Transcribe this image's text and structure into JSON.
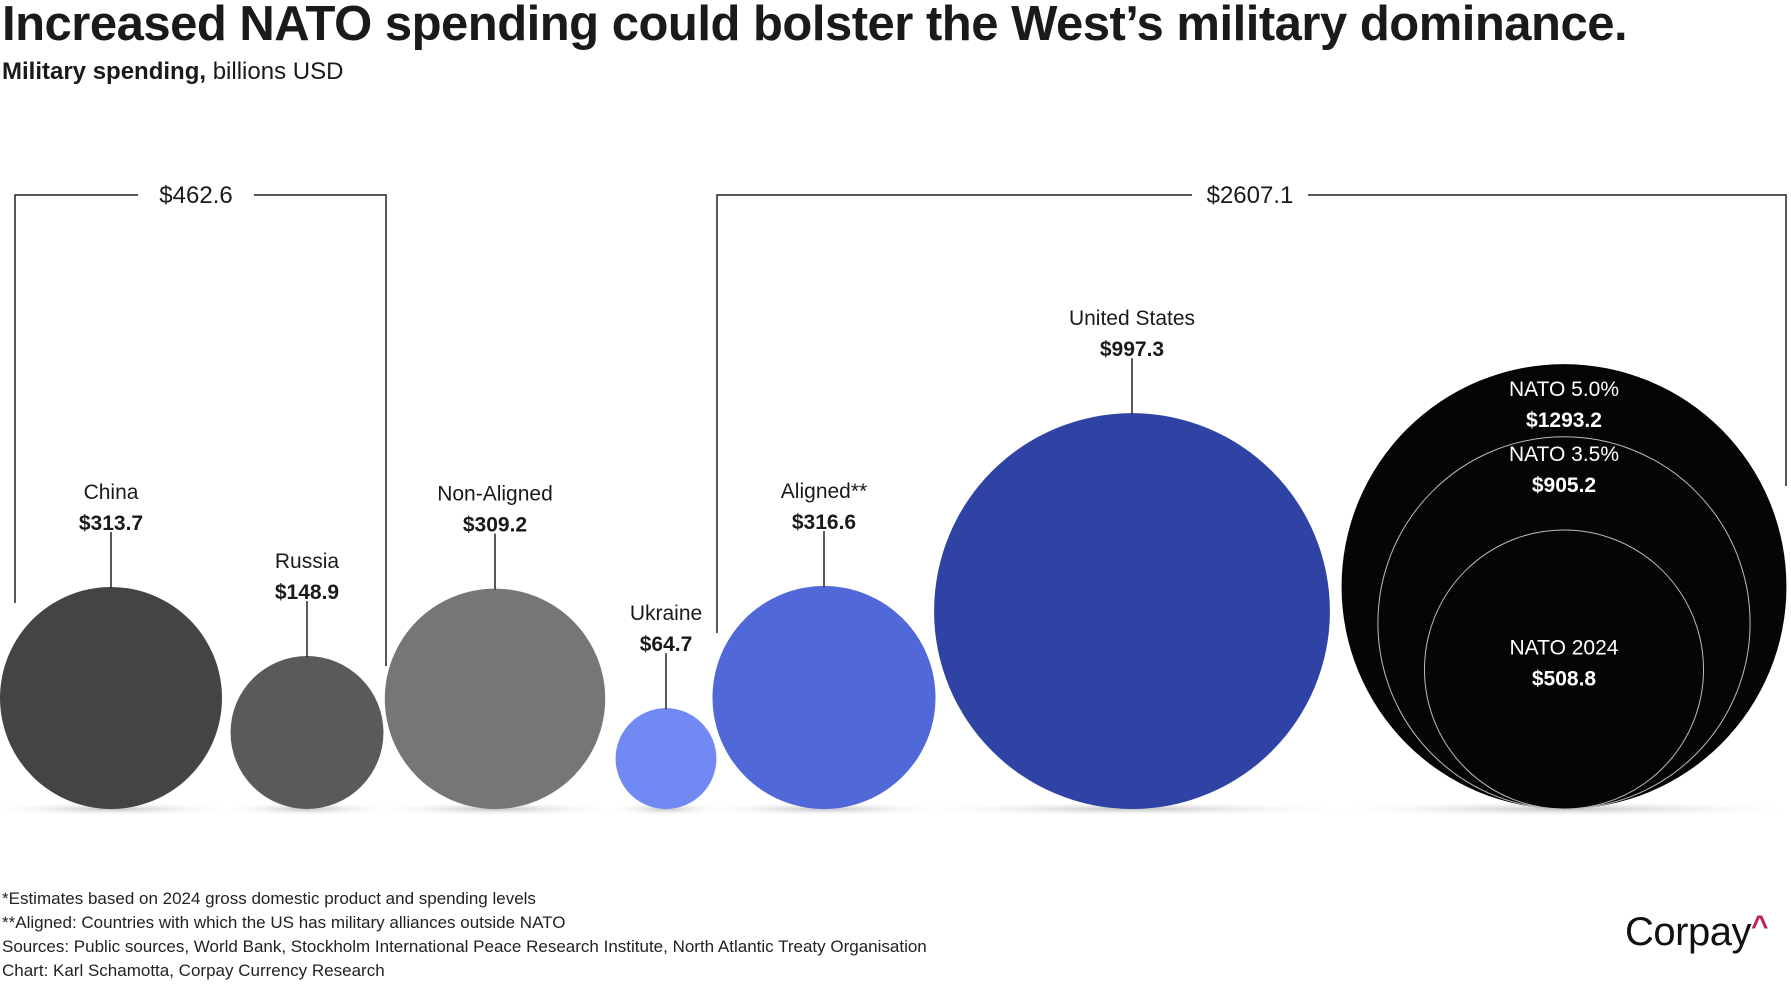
{
  "title": "Increased NATO spending could bolster the West’s military dominance.",
  "subtitle_bold": "Military spending,",
  "subtitle_rest": " billions USD",
  "chart_data": {
    "type": "bubble",
    "unit": "billions USD",
    "groups": [
      {
        "label": "$462.6",
        "total": 462.6,
        "members": [
          "China",
          "Russia"
        ]
      },
      {
        "label": "$2607.1",
        "total": 2607.1,
        "members": [
          "Ukraine",
          "Aligned**",
          "United States",
          "NATO 5.0%"
        ]
      }
    ],
    "bubbles": [
      {
        "name": "China",
        "value": 313.7,
        "label": "$313.7",
        "color": "#444444"
      },
      {
        "name": "Russia",
        "value": 148.9,
        "label": "$148.9",
        "color": "#5a5a5a"
      },
      {
        "name": "Non-Aligned",
        "value": 309.2,
        "label": "$309.2",
        "color": "#767676"
      },
      {
        "name": "Ukraine",
        "value": 64.7,
        "label": "$64.7",
        "color": "#7189f2"
      },
      {
        "name": "Aligned**",
        "value": 316.6,
        "label": "$316.6",
        "color": "#5068d8"
      },
      {
        "name": "United States",
        "value": 997.3,
        "label": "$997.3",
        "color": "#2e43a3"
      }
    ],
    "nested": [
      {
        "name": "NATO 5.0%",
        "value": 1293.2,
        "label": "$1293.2"
      },
      {
        "name": "NATO 3.5%",
        "value": 905.2,
        "label": "$905.2"
      },
      {
        "name": "NATO 2024",
        "value": 508.8,
        "label": "$508.8"
      }
    ],
    "nested_color": "#050508"
  },
  "footnotes": [
    "*Estimates based on 2024 gross domestic product and spending levels",
    "**Aligned: Countries with which the US has military alliances outside NATO",
    "Sources: Public sources, World Bank, Stockholm International Peace Research Institute, North Atlantic Treaty Organisation",
    "Chart: Karl Schamotta, Corpay Currency Research"
  ],
  "logo": {
    "text": "Corpay",
    "mark": "^"
  }
}
